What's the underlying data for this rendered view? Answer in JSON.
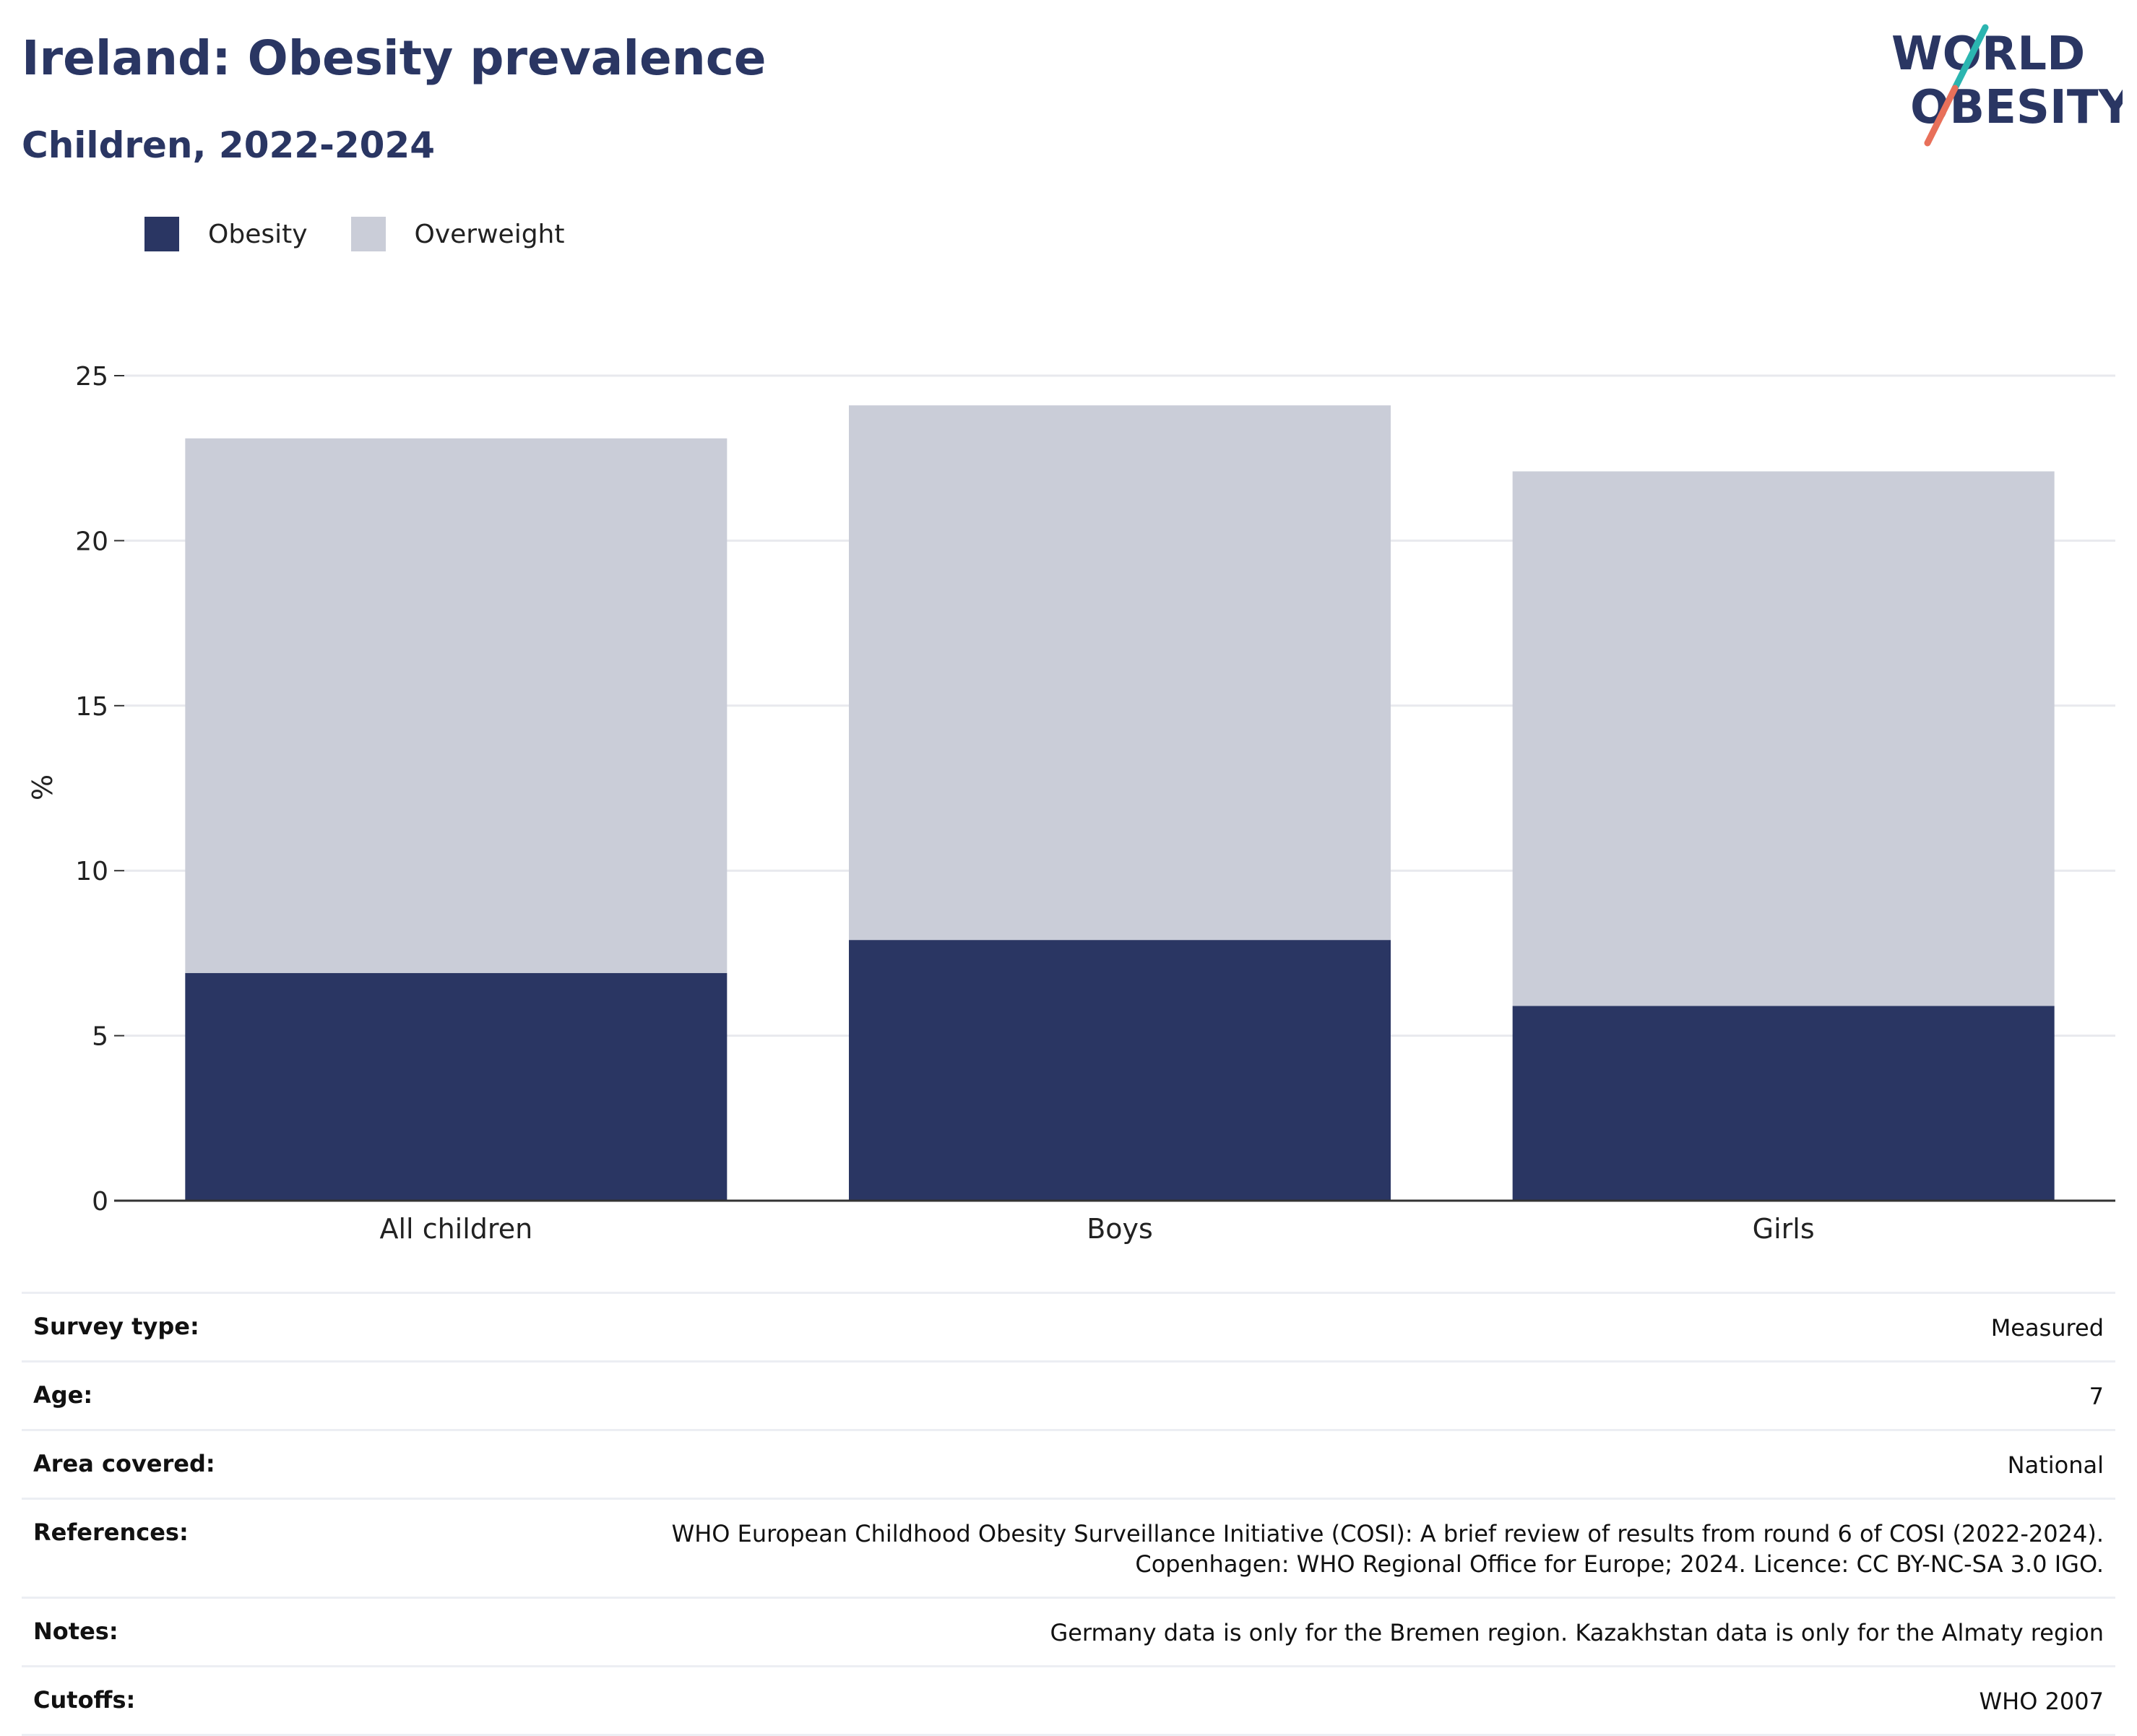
{
  "header": {
    "title": "Ireland: Obesity prevalence",
    "subtitle": "Children, 2022-2024",
    "logo_text_top": "WORLD",
    "logo_text_bottom": "OBESITY"
  },
  "colors": {
    "obesity": "#2a3663",
    "overweight": "#cacdd8",
    "grid": "#e8e9ee",
    "axis": "#333333",
    "logo_navy": "#2a3663",
    "logo_teal": "#2bb5b0",
    "logo_coral": "#e8705a"
  },
  "chart_data": {
    "type": "bar",
    "stacked": true,
    "categories": [
      "All children",
      "Boys",
      "Girls"
    ],
    "series": [
      {
        "name": "Obesity",
        "values": [
          6.9,
          7.9,
          5.9
        ]
      },
      {
        "name": "Overweight",
        "values": [
          16.2,
          16.2,
          16.2
        ]
      }
    ],
    "ylabel": "%",
    "yticks": [
      0,
      5,
      10,
      15,
      20,
      25
    ],
    "ylim": [
      0,
      25
    ],
    "grid": true,
    "legend": "top-left"
  },
  "info": [
    {
      "label": "Survey type:",
      "value": "Measured"
    },
    {
      "label": "Age:",
      "value": "7"
    },
    {
      "label": "Area covered:",
      "value": "National"
    },
    {
      "label": "References:",
      "value": "WHO European Childhood Obesity Surveillance Initiative (COSI): A brief review of results from round 6 of COSI (2022-2024). Copenhagen: WHO Regional Office for Europe; 2024. Licence: CC BY-NC-SA 3.0 IGO."
    },
    {
      "label": "Notes:",
      "value": "Germany data is only for the Bremen region. Kazakhstan data is only for the Almaty region"
    },
    {
      "label": "Cutoffs:",
      "value": "WHO 2007"
    }
  ]
}
